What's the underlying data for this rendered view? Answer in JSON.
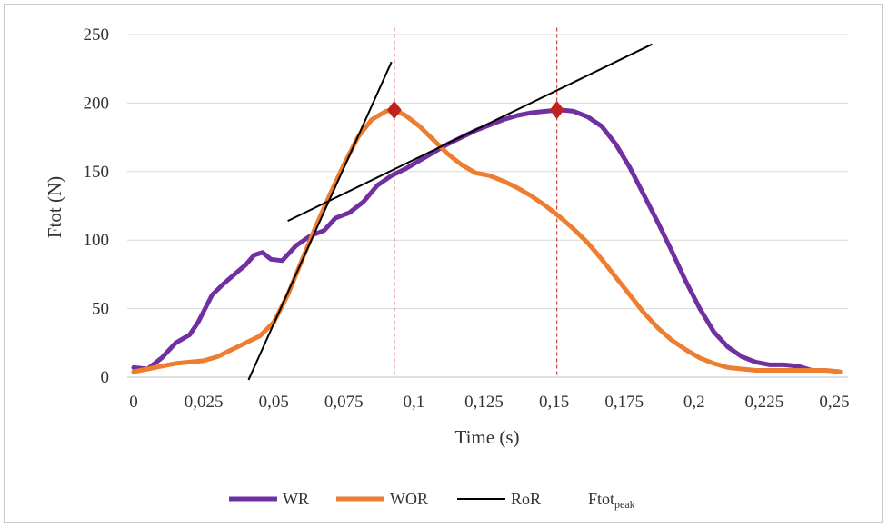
{
  "chart_data": {
    "type": "line",
    "xlabel": "Time (s)",
    "ylabel": "Ftot (N)",
    "xlim": [
      0,
      0.25
    ],
    "ylim": [
      0,
      250
    ],
    "x_ticks": [
      "0",
      "0,025",
      "0,05",
      "0,075",
      "0,1",
      "0,125",
      "0,15",
      "0,175",
      "0,2",
      "0,225",
      "0,25"
    ],
    "y_ticks": [
      "0",
      "50",
      "100",
      "150",
      "200",
      "250"
    ],
    "grid": "horizontal",
    "legend_position": "bottom",
    "series": [
      {
        "name": "WR",
        "color": "#7030a0",
        "points": [
          [
            0,
            7
          ],
          [
            0.005,
            6
          ],
          [
            0.01,
            14
          ],
          [
            0.015,
            25
          ],
          [
            0.02,
            31
          ],
          [
            0.023,
            40
          ],
          [
            0.025,
            48
          ],
          [
            0.028,
            60
          ],
          [
            0.032,
            68
          ],
          [
            0.036,
            75
          ],
          [
            0.04,
            82
          ],
          [
            0.043,
            89
          ],
          [
            0.046,
            91
          ],
          [
            0.049,
            86
          ],
          [
            0.053,
            85
          ],
          [
            0.058,
            96
          ],
          [
            0.063,
            103
          ],
          [
            0.068,
            107
          ],
          [
            0.072,
            116
          ],
          [
            0.077,
            120
          ],
          [
            0.082,
            128
          ],
          [
            0.087,
            140
          ],
          [
            0.092,
            147
          ],
          [
            0.097,
            152
          ],
          [
            0.102,
            158
          ],
          [
            0.107,
            164
          ],
          [
            0.112,
            170
          ],
          [
            0.117,
            175
          ],
          [
            0.122,
            180
          ],
          [
            0.127,
            184
          ],
          [
            0.132,
            188
          ],
          [
            0.137,
            191
          ],
          [
            0.142,
            193
          ],
          [
            0.147,
            194
          ],
          [
            0.152,
            195
          ],
          [
            0.157,
            194
          ],
          [
            0.162,
            190
          ],
          [
            0.167,
            183
          ],
          [
            0.172,
            170
          ],
          [
            0.177,
            153
          ],
          [
            0.182,
            133
          ],
          [
            0.187,
            113
          ],
          [
            0.192,
            92
          ],
          [
            0.197,
            70
          ],
          [
            0.202,
            50
          ],
          [
            0.207,
            33
          ],
          [
            0.212,
            22
          ],
          [
            0.217,
            15
          ],
          [
            0.222,
            11
          ],
          [
            0.227,
            9
          ],
          [
            0.232,
            9
          ],
          [
            0.237,
            8
          ],
          [
            0.242,
            5
          ]
        ]
      },
      {
        "name": "WOR",
        "color": "#ed7d31",
        "points": [
          [
            0,
            4
          ],
          [
            0.005,
            6
          ],
          [
            0.01,
            8
          ],
          [
            0.015,
            10
          ],
          [
            0.02,
            11
          ],
          [
            0.025,
            12
          ],
          [
            0.03,
            15
          ],
          [
            0.035,
            20
          ],
          [
            0.04,
            25
          ],
          [
            0.045,
            30
          ],
          [
            0.05,
            40
          ],
          [
            0.055,
            60
          ],
          [
            0.06,
            85
          ],
          [
            0.065,
            110
          ],
          [
            0.07,
            133
          ],
          [
            0.075,
            155
          ],
          [
            0.08,
            175
          ],
          [
            0.085,
            188
          ],
          [
            0.09,
            194
          ],
          [
            0.093,
            195
          ],
          [
            0.097,
            191
          ],
          [
            0.102,
            183
          ],
          [
            0.107,
            173
          ],
          [
            0.112,
            163
          ],
          [
            0.117,
            155
          ],
          [
            0.122,
            149
          ],
          [
            0.127,
            147
          ],
          [
            0.132,
            143
          ],
          [
            0.137,
            138
          ],
          [
            0.142,
            132
          ],
          [
            0.147,
            125
          ],
          [
            0.152,
            117
          ],
          [
            0.157,
            108
          ],
          [
            0.162,
            98
          ],
          [
            0.167,
            86
          ],
          [
            0.172,
            73
          ],
          [
            0.177,
            60
          ],
          [
            0.182,
            47
          ],
          [
            0.187,
            36
          ],
          [
            0.192,
            27
          ],
          [
            0.197,
            20
          ],
          [
            0.202,
            14
          ],
          [
            0.207,
            10
          ],
          [
            0.212,
            7
          ],
          [
            0.217,
            6
          ],
          [
            0.222,
            5
          ],
          [
            0.227,
            5
          ],
          [
            0.232,
            5
          ],
          [
            0.237,
            5
          ],
          [
            0.242,
            5
          ],
          [
            0.247,
            5
          ],
          [
            0.252,
            4
          ]
        ]
      },
      {
        "name": "RoR",
        "color": "#000000",
        "segments": [
          [
            [
              0.041,
              -2
            ],
            [
              0.092,
              230
            ]
          ],
          [
            [
              0.055,
              114
            ],
            [
              0.185,
              243
            ]
          ]
        ]
      },
      {
        "name": "Ftot",
        "name_subscript": "peak",
        "color": "#c0221c",
        "markers": [
          [
            0.093,
            195
          ],
          [
            0.151,
            195
          ]
        ]
      }
    ]
  }
}
